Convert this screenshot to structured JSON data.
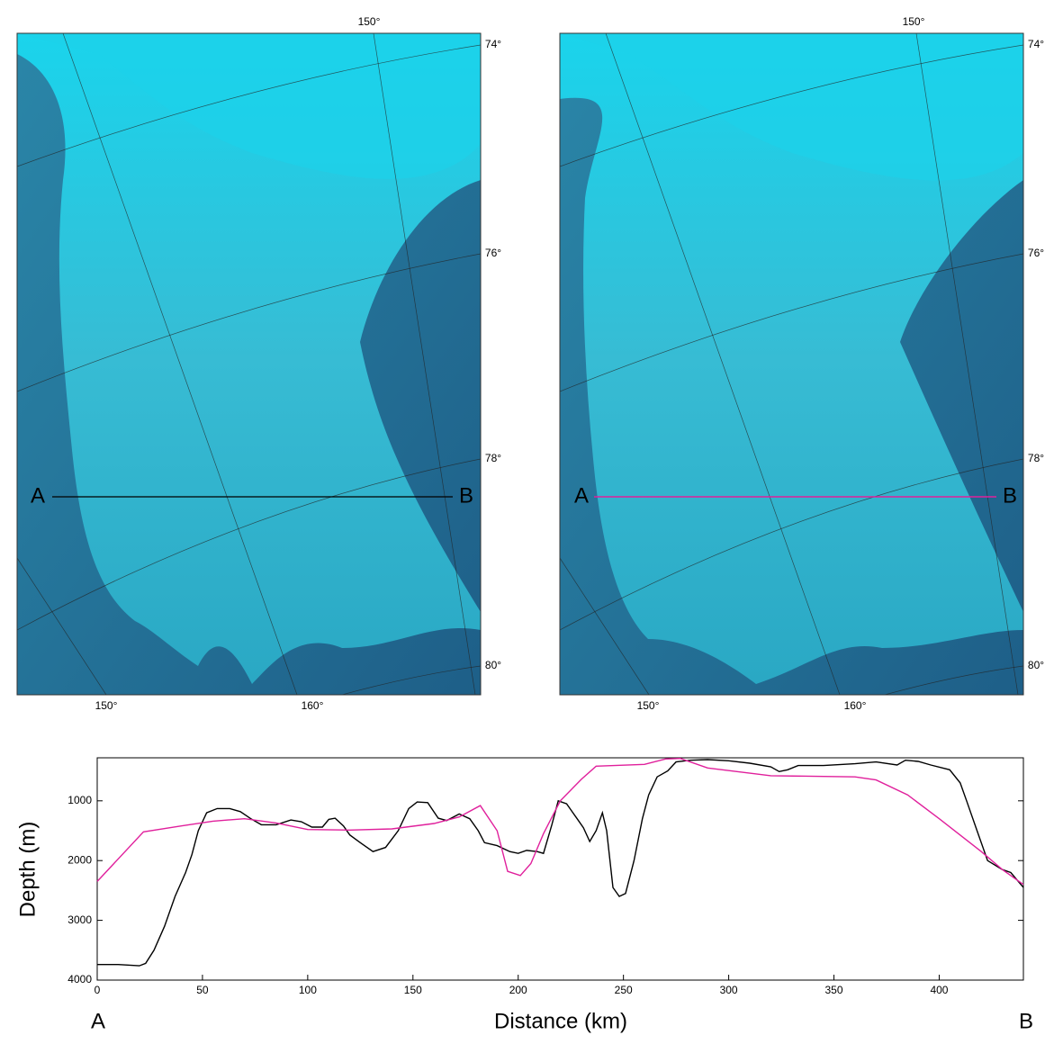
{
  "maps": {
    "lat_labels": [
      "74°",
      "76°",
      "78°",
      "80°"
    ],
    "top_lon_label": "150°",
    "bottom_lon_labels": [
      "150°",
      "160°"
    ],
    "point_a": "A",
    "point_b": "B"
  },
  "chart_data": {
    "type": "line",
    "x_label": "Distance (km)",
    "y_label": "Depth (m)",
    "annotations": [
      "A",
      "B"
    ],
    "xlim": [
      0,
      440
    ],
    "xticks": [
      0,
      50,
      100,
      150,
      200,
      250,
      300,
      350,
      400
    ],
    "ylim": [
      280,
      4000
    ],
    "y_reversed": true,
    "yticks": [
      1000,
      2000,
      3000,
      4000
    ],
    "series": [
      {
        "color": "#000000",
        "x": [
          0,
          10,
          20,
          23,
          27,
          32,
          37,
          42,
          45,
          48,
          52,
          57,
          63,
          68,
          73,
          78,
          85,
          92,
          97,
          102,
          107,
          110,
          113,
          117,
          120,
          125,
          131,
          137,
          143,
          148,
          152,
          157,
          162,
          166,
          172,
          177,
          181,
          184,
          190,
          196,
          200,
          204,
          209,
          212,
          216,
          219,
          223,
          228,
          231,
          234,
          237,
          240,
          242,
          245,
          248,
          251,
          255,
          259,
          262,
          266,
          271,
          275,
          282,
          290,
          300,
          310,
          320,
          324,
          328,
          333,
          345,
          360,
          370,
          380,
          384,
          390,
          396,
          405,
          410,
          413,
          418,
          423,
          430,
          434,
          440
        ],
        "values": [
          3740,
          3740,
          3760,
          3720,
          3500,
          3100,
          2600,
          2200,
          1900,
          1500,
          1200,
          1130,
          1130,
          1180,
          1300,
          1400,
          1400,
          1320,
          1350,
          1440,
          1440,
          1310,
          1290,
          1420,
          1570,
          1700,
          1850,
          1780,
          1500,
          1130,
          1020,
          1030,
          1290,
          1330,
          1220,
          1300,
          1500,
          1700,
          1750,
          1850,
          1880,
          1830,
          1850,
          1880,
          1400,
          1000,
          1050,
          1300,
          1450,
          1680,
          1500,
          1200,
          1500,
          2450,
          2600,
          2550,
          2000,
          1300,
          900,
          600,
          500,
          350,
          320,
          310,
          330,
          370,
          430,
          510,
          480,
          410,
          410,
          380,
          350,
          400,
          320,
          340,
          400,
          480,
          700,
          1000,
          1500,
          2000,
          2150,
          2200,
          2450
        ]
      },
      {
        "color": "#e0209c",
        "x": [
          0,
          22,
          40,
          55,
          70,
          85,
          100,
          120,
          140,
          160,
          172,
          182,
          190,
          195,
          201,
          206,
          212,
          220,
          230,
          237,
          260,
          270,
          277,
          290,
          320,
          360,
          370,
          385,
          400,
          420,
          430,
          440
        ],
        "values": [
          2350,
          1520,
          1420,
          1340,
          1300,
          1370,
          1480,
          1490,
          1470,
          1380,
          1270,
          1080,
          1500,
          2180,
          2250,
          2050,
          1550,
          1000,
          640,
          420,
          390,
          300,
          290,
          450,
          580,
          600,
          650,
          900,
          1300,
          1850,
          2150,
          2400
        ]
      }
    ]
  }
}
